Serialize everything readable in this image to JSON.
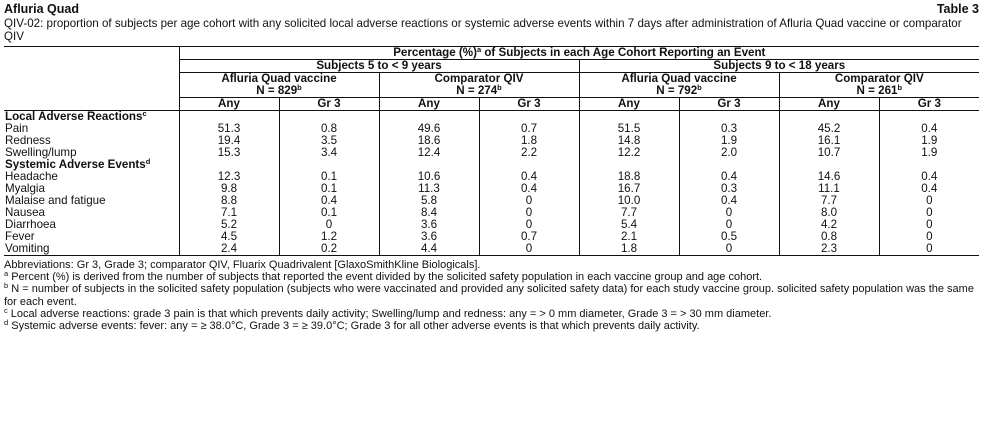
{
  "header": {
    "product": "Afluria Quad",
    "table_label": "Table 3",
    "caption": "QIV-02: proportion of subjects per age cohort with any solicited local adverse reactions or systemic adverse events within 7 days after administration of Afluria Quad vaccine or comparator QIV"
  },
  "table": {
    "top_header": "Percentage (%)",
    "top_header_sup": "a",
    "top_header_rest": " of Subjects in each Age Cohort Reporting an Event",
    "cohorts": [
      "Subjects 5 to < 9 years",
      "Subjects 9 to < 18 years"
    ],
    "groups": [
      {
        "name": "Afluria Quad vaccine",
        "n": "N = 829",
        "sup": "b"
      },
      {
        "name": "Comparator QIV",
        "n": "N = 274",
        "sup": "b"
      },
      {
        "name": "Afluria Quad vaccine",
        "n": "N = 792",
        "sup": "b"
      },
      {
        "name": "Comparator QIV",
        "n": "N = 261",
        "sup": "b"
      }
    ],
    "subcols": [
      "Any",
      "Gr 3",
      "Any",
      "Gr 3",
      "Any",
      "Gr 3",
      "Any",
      "Gr 3"
    ],
    "sections": [
      {
        "title": "Local Adverse Reactions",
        "sup": "c",
        "rows": [
          {
            "label": "Pain",
            "values": [
              "51.3",
              "0.8",
              "49.6",
              "0.7",
              "51.5",
              "0.3",
              "45.2",
              "0.4"
            ]
          },
          {
            "label": "Redness",
            "values": [
              "19.4",
              "3.5",
              "18.6",
              "1.8",
              "14.8",
              "1.9",
              "16.1",
              "1.9"
            ]
          },
          {
            "label": "Swelling/lump",
            "values": [
              "15.3",
              "3.4",
              "12.4",
              "2.2",
              "12.2",
              "2.0",
              "10.7",
              "1.9"
            ]
          }
        ]
      },
      {
        "title": "Systemic Adverse Events",
        "sup": "d",
        "rows": [
          {
            "label": "Headache",
            "values": [
              "12.3",
              "0.1",
              "10.6",
              "0.4",
              "18.8",
              "0.4",
              "14.6",
              "0.4"
            ]
          },
          {
            "label": "Myalgia",
            "values": [
              "9.8",
              "0.1",
              "11.3",
              "0.4",
              "16.7",
              "0.3",
              "11.1",
              "0.4"
            ]
          },
          {
            "label": "Malaise and fatigue",
            "values": [
              "8.8",
              "0.4",
              "5.8",
              "0",
              "10.0",
              "0.4",
              "7.7",
              "0"
            ]
          },
          {
            "label": "Nausea",
            "values": [
              "7.1",
              "0.1",
              "8.4",
              "0",
              "7.7",
              "0",
              "8.0",
              "0"
            ]
          },
          {
            "label": "Diarrhoea",
            "values": [
              "5.2",
              "0",
              "3.6",
              "0",
              "5.4",
              "0",
              "4.2",
              "0"
            ]
          },
          {
            "label": "Fever",
            "values": [
              "4.5",
              "1.2",
              "3.6",
              "0.7",
              "2.1",
              "0.5",
              "0.8",
              "0"
            ]
          },
          {
            "label": "Vomiting",
            "values": [
              "2.4",
              "0.2",
              "4.4",
              "0",
              "1.8",
              "0",
              "2.3",
              "0"
            ]
          }
        ]
      }
    ]
  },
  "footnotes": [
    {
      "mark": "",
      "text": "Abbreviations: Gr 3, Grade 3; comparator QIV, Fluarix Quadrivalent [GlaxoSmithKline Biologicals]."
    },
    {
      "mark": "a",
      "text": " Percent (%) is derived from the number of subjects that reported the event divided by the solicited safety population in each vaccine group and age cohort."
    },
    {
      "mark": "b",
      "text": " N = number of subjects in the solicited safety population (subjects who were vaccinated and provided any solicited safety data) for each study vaccine group. solicited safety population was the same for each event."
    },
    {
      "mark": "c",
      "text": " Local adverse reactions: grade 3 pain is that which prevents daily activity; Swelling/lump and redness: any = > 0 mm diameter, Grade 3 = > 30 mm diameter."
    },
    {
      "mark": "d",
      "text": " Systemic adverse events: fever: any = ≥ 38.0°C, Grade 3 = ≥ 39.0°C; Grade 3 for all other adverse events is that which prevents daily activity."
    }
  ]
}
